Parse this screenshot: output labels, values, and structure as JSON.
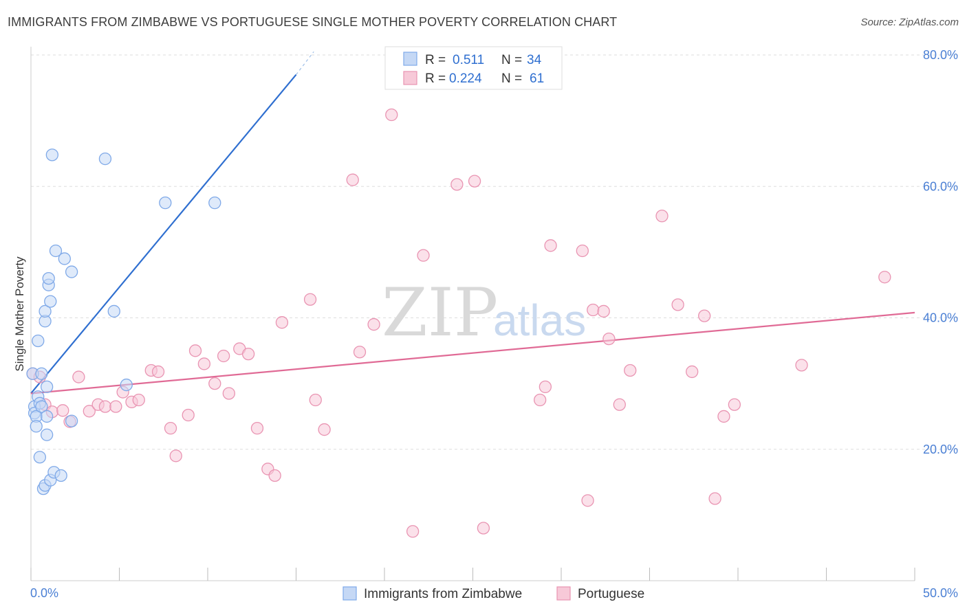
{
  "header": {
    "title": "IMMIGRANTS FROM ZIMBABWE VS PORTUGUESE SINGLE MOTHER POVERTY CORRELATION CHART",
    "source": "Source: ZipAtlas.com"
  },
  "watermark": {
    "zip": "ZIP",
    "atlas": "atlas"
  },
  "colors": {
    "blue": "#7fa9e8",
    "blue_fill": "#c5d8f5",
    "blue_line": "#2f6fd0",
    "pink": "#e994b2",
    "pink_fill": "#f7c9d8",
    "pink_line": "#e06a95",
    "axis_text": "#4a7fd4",
    "grid": "#dddddd"
  },
  "legend": {
    "rows": [
      {
        "r_label": "R =",
        "r_value": "0.511",
        "n_label": "N =",
        "n_value": "34"
      },
      {
        "r_label": "R =",
        "r_value": "0.224",
        "n_label": "N =",
        "n_value": "61"
      }
    ]
  },
  "bottom_legend": {
    "items": [
      {
        "label": "Immigrants from Zimbabwe"
      },
      {
        "label": "Portuguese"
      }
    ]
  },
  "chart_data": {
    "type": "scatter",
    "title": "IMMIGRANTS FROM ZIMBABWE VS PORTUGUESE SINGLE MOTHER POVERTY CORRELATION CHART",
    "xlabel": "",
    "ylabel": "Single Mother Poverty",
    "xlim": [
      0,
      50
    ],
    "ylim": [
      0,
      80
    ],
    "x_tick_labels": [
      "0.0%",
      "50.0%"
    ],
    "y_ticks": [
      20,
      40,
      60,
      80
    ],
    "y_tick_labels": [
      "20.0%",
      "40.0%",
      "60.0%",
      "80.0%"
    ],
    "x_minor_ticks": [
      0,
      5,
      10,
      15,
      20,
      25,
      30,
      35,
      40,
      45,
      50
    ],
    "series": [
      {
        "name": "Immigrants from Zimbabwe",
        "color": "#7fa9e8",
        "R": 0.511,
        "N": 34,
        "trend": {
          "x": [
            0,
            15
          ],
          "y": [
            28.5,
            77
          ],
          "dashed_extension_to": [
            16,
            80.5
          ]
        },
        "points": [
          [
            0.1,
            31.5
          ],
          [
            0.2,
            26.5
          ],
          [
            0.2,
            25.5
          ],
          [
            0.3,
            25
          ],
          [
            0.3,
            23.5
          ],
          [
            0.4,
            36.5
          ],
          [
            0.4,
            28
          ],
          [
            0.5,
            27
          ],
          [
            0.5,
            18.8
          ],
          [
            0.6,
            31.5
          ],
          [
            0.6,
            26.5
          ],
          [
            0.7,
            14
          ],
          [
            0.8,
            39.5
          ],
          [
            0.8,
            41
          ],
          [
            0.8,
            14.5
          ],
          [
            0.9,
            29.5
          ],
          [
            0.9,
            22.2
          ],
          [
            0.9,
            25
          ],
          [
            1.0,
            45
          ],
          [
            1.0,
            46
          ],
          [
            1.1,
            42.5
          ],
          [
            1.1,
            15.3
          ],
          [
            1.2,
            64.8
          ],
          [
            1.3,
            16.5
          ],
          [
            1.4,
            50.2
          ],
          [
            1.7,
            16
          ],
          [
            1.9,
            49
          ],
          [
            2.3,
            47
          ],
          [
            2.3,
            24.3
          ],
          [
            4.2,
            64.2
          ],
          [
            4.7,
            41
          ],
          [
            5.4,
            29.8
          ],
          [
            7.6,
            57.5
          ],
          [
            10.4,
            57.5
          ]
        ]
      },
      {
        "name": "Portuguese",
        "color": "#e994b2",
        "R": 0.224,
        "N": 61,
        "trend": {
          "x": [
            0,
            50
          ],
          "y": [
            28.5,
            40.8
          ]
        },
        "points": [
          [
            0.1,
            31.5
          ],
          [
            0.5,
            31
          ],
          [
            0.8,
            26.8
          ],
          [
            1.2,
            25.7
          ],
          [
            1.8,
            25.9
          ],
          [
            2.2,
            24.2
          ],
          [
            2.7,
            31
          ],
          [
            3.3,
            25.8
          ],
          [
            3.8,
            26.8
          ],
          [
            4.2,
            26.5
          ],
          [
            4.8,
            26.5
          ],
          [
            5.2,
            28.7
          ],
          [
            5.7,
            27.2
          ],
          [
            6.1,
            27.5
          ],
          [
            6.8,
            32
          ],
          [
            7.2,
            31.8
          ],
          [
            7.9,
            23.2
          ],
          [
            8.2,
            19
          ],
          [
            8.9,
            25.2
          ],
          [
            9.3,
            35
          ],
          [
            9.8,
            33
          ],
          [
            10.4,
            30
          ],
          [
            10.9,
            34.2
          ],
          [
            11.2,
            28.5
          ],
          [
            11.8,
            35.3
          ],
          [
            12.3,
            34.5
          ],
          [
            12.8,
            23.2
          ],
          [
            13.4,
            17
          ],
          [
            13.8,
            16
          ],
          [
            14.2,
            39.3
          ],
          [
            15.8,
            42.8
          ],
          [
            16.1,
            27.5
          ],
          [
            16.6,
            23
          ],
          [
            18.2,
            61
          ],
          [
            18.6,
            34.8
          ],
          [
            19.4,
            39
          ],
          [
            20.4,
            70.9
          ],
          [
            21.6,
            7.5
          ],
          [
            22.2,
            49.5
          ],
          [
            24.1,
            60.3
          ],
          [
            25.1,
            60.8
          ],
          [
            25.6,
            8
          ],
          [
            28.8,
            27.5
          ],
          [
            29.1,
            29.5
          ],
          [
            29.4,
            51
          ],
          [
            31.2,
            50.2
          ],
          [
            31.5,
            12.2
          ],
          [
            31.8,
            41.2
          ],
          [
            32.4,
            41
          ],
          [
            32.7,
            36.8
          ],
          [
            33.3,
            26.8
          ],
          [
            33.9,
            32
          ],
          [
            35.7,
            55.5
          ],
          [
            36.6,
            42
          ],
          [
            37.4,
            31.8
          ],
          [
            38.1,
            40.3
          ],
          [
            38.7,
            12.5
          ],
          [
            39.2,
            25
          ],
          [
            39.8,
            26.8
          ],
          [
            43.6,
            32.8
          ],
          [
            48.3,
            46.2
          ]
        ]
      }
    ]
  }
}
